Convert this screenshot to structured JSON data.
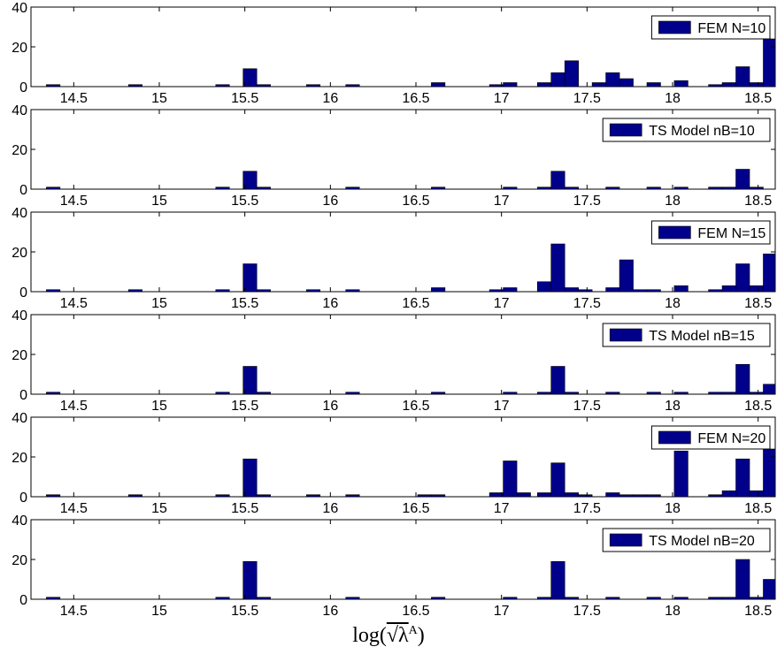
{
  "figure": {
    "xlabel_prefix": "log(",
    "xlabel_symbol": "√λ",
    "xlabel_sup": "A",
    "xlabel_suffix": ")"
  },
  "chart_data": [
    {
      "type": "bar",
      "legend": "FEM N=10",
      "bar_color": "#00008b",
      "xlim": [
        14.25,
        18.6
      ],
      "ylim": [
        0,
        40
      ],
      "yticks": [
        0,
        20,
        40
      ],
      "xticks": [
        14.5,
        15,
        15.5,
        16,
        16.5,
        17,
        17.5,
        18,
        18.5
      ],
      "bin_width": 0.08,
      "x": [
        14.38,
        14.86,
        15.37,
        15.53,
        15.61,
        15.9,
        16.13,
        16.63,
        16.97,
        17.05,
        17.25,
        17.33,
        17.41,
        17.57,
        17.65,
        17.73,
        17.89,
        18.05,
        18.25,
        18.33,
        18.41,
        18.49,
        18.57
      ],
      "values": [
        1,
        1,
        1,
        9,
        1,
        1,
        1,
        2,
        1,
        2,
        2,
        7,
        13,
        2,
        7,
        4,
        2,
        3,
        1,
        2,
        10,
        2,
        24
      ]
    },
    {
      "type": "bar",
      "legend": "TS Model nB=10",
      "bar_color": "#00008b",
      "xlim": [
        14.25,
        18.6
      ],
      "ylim": [
        0,
        40
      ],
      "yticks": [
        0,
        20,
        40
      ],
      "xticks": [
        14.5,
        15,
        15.5,
        16,
        16.5,
        17,
        17.5,
        18,
        18.5
      ],
      "bin_width": 0.08,
      "x": [
        14.38,
        15.37,
        15.53,
        15.61,
        16.13,
        16.63,
        17.05,
        17.25,
        17.33,
        17.41,
        17.65,
        17.89,
        18.05,
        18.25,
        18.33,
        18.41,
        18.49
      ],
      "values": [
        1,
        1,
        9,
        1,
        1,
        1,
        1,
        1,
        9,
        1,
        1,
        1,
        1,
        1,
        1,
        10,
        1
      ]
    },
    {
      "type": "bar",
      "legend": "FEM N=15",
      "bar_color": "#00008b",
      "xlim": [
        14.25,
        18.6
      ],
      "ylim": [
        0,
        40
      ],
      "yticks": [
        0,
        20,
        40
      ],
      "xticks": [
        14.5,
        15,
        15.5,
        16,
        16.5,
        17,
        17.5,
        18,
        18.5
      ],
      "bin_width": 0.08,
      "x": [
        14.38,
        14.86,
        15.37,
        15.53,
        15.61,
        15.9,
        16.13,
        16.63,
        16.97,
        17.05,
        17.25,
        17.33,
        17.41,
        17.49,
        17.65,
        17.73,
        17.81,
        17.89,
        18.05,
        18.25,
        18.33,
        18.41,
        18.49,
        18.57
      ],
      "values": [
        1,
        1,
        1,
        14,
        1,
        1,
        1,
        2,
        1,
        2,
        5,
        24,
        2,
        1,
        2,
        16,
        1,
        1,
        3,
        1,
        3,
        14,
        3,
        19
      ]
    },
    {
      "type": "bar",
      "legend": "TS Model nB=15",
      "bar_color": "#00008b",
      "xlim": [
        14.25,
        18.6
      ],
      "ylim": [
        0,
        40
      ],
      "yticks": [
        0,
        20,
        40
      ],
      "xticks": [
        14.5,
        15,
        15.5,
        16,
        16.5,
        17,
        17.5,
        18,
        18.5
      ],
      "bin_width": 0.08,
      "x": [
        14.38,
        15.37,
        15.53,
        15.61,
        16.13,
        16.63,
        17.05,
        17.25,
        17.33,
        17.41,
        17.65,
        17.89,
        18.05,
        18.25,
        18.33,
        18.41,
        18.49,
        18.57
      ],
      "values": [
        1,
        1,
        14,
        1,
        1,
        1,
        1,
        1,
        14,
        1,
        1,
        1,
        1,
        1,
        1,
        15,
        1,
        5
      ]
    },
    {
      "type": "bar",
      "legend": "FEM N=20",
      "bar_color": "#00008b",
      "xlim": [
        14.25,
        18.6
      ],
      "ylim": [
        0,
        40
      ],
      "yticks": [
        0,
        20,
        40
      ],
      "xticks": [
        14.5,
        15,
        15.5,
        16,
        16.5,
        17,
        17.5,
        18,
        18.5
      ],
      "bin_width": 0.08,
      "x": [
        14.38,
        14.86,
        15.37,
        15.53,
        15.61,
        15.9,
        16.13,
        16.55,
        16.63,
        16.97,
        17.05,
        17.13,
        17.25,
        17.33,
        17.41,
        17.49,
        17.65,
        17.73,
        17.81,
        17.89,
        18.05,
        18.25,
        18.33,
        18.41,
        18.49,
        18.57
      ],
      "values": [
        1,
        1,
        1,
        19,
        1,
        1,
        1,
        1,
        1,
        2,
        18,
        2,
        2,
        17,
        2,
        1,
        2,
        1,
        1,
        1,
        23,
        1,
        3,
        19,
        3,
        24
      ]
    },
    {
      "type": "bar",
      "legend": "TS Model nB=20",
      "bar_color": "#00008b",
      "xlim": [
        14.25,
        18.6
      ],
      "ylim": [
        0,
        40
      ],
      "yticks": [
        0,
        20,
        40
      ],
      "xticks": [
        14.5,
        15,
        15.5,
        16,
        16.5,
        17,
        17.5,
        18,
        18.5
      ],
      "bin_width": 0.08,
      "x": [
        14.38,
        15.37,
        15.53,
        15.61,
        16.13,
        16.63,
        17.05,
        17.25,
        17.33,
        17.41,
        17.65,
        17.89,
        18.05,
        18.25,
        18.33,
        18.41,
        18.49,
        18.57
      ],
      "values": [
        1,
        1,
        19,
        1,
        1,
        1,
        1,
        1,
        19,
        1,
        1,
        1,
        1,
        1,
        1,
        20,
        1,
        10
      ]
    }
  ]
}
